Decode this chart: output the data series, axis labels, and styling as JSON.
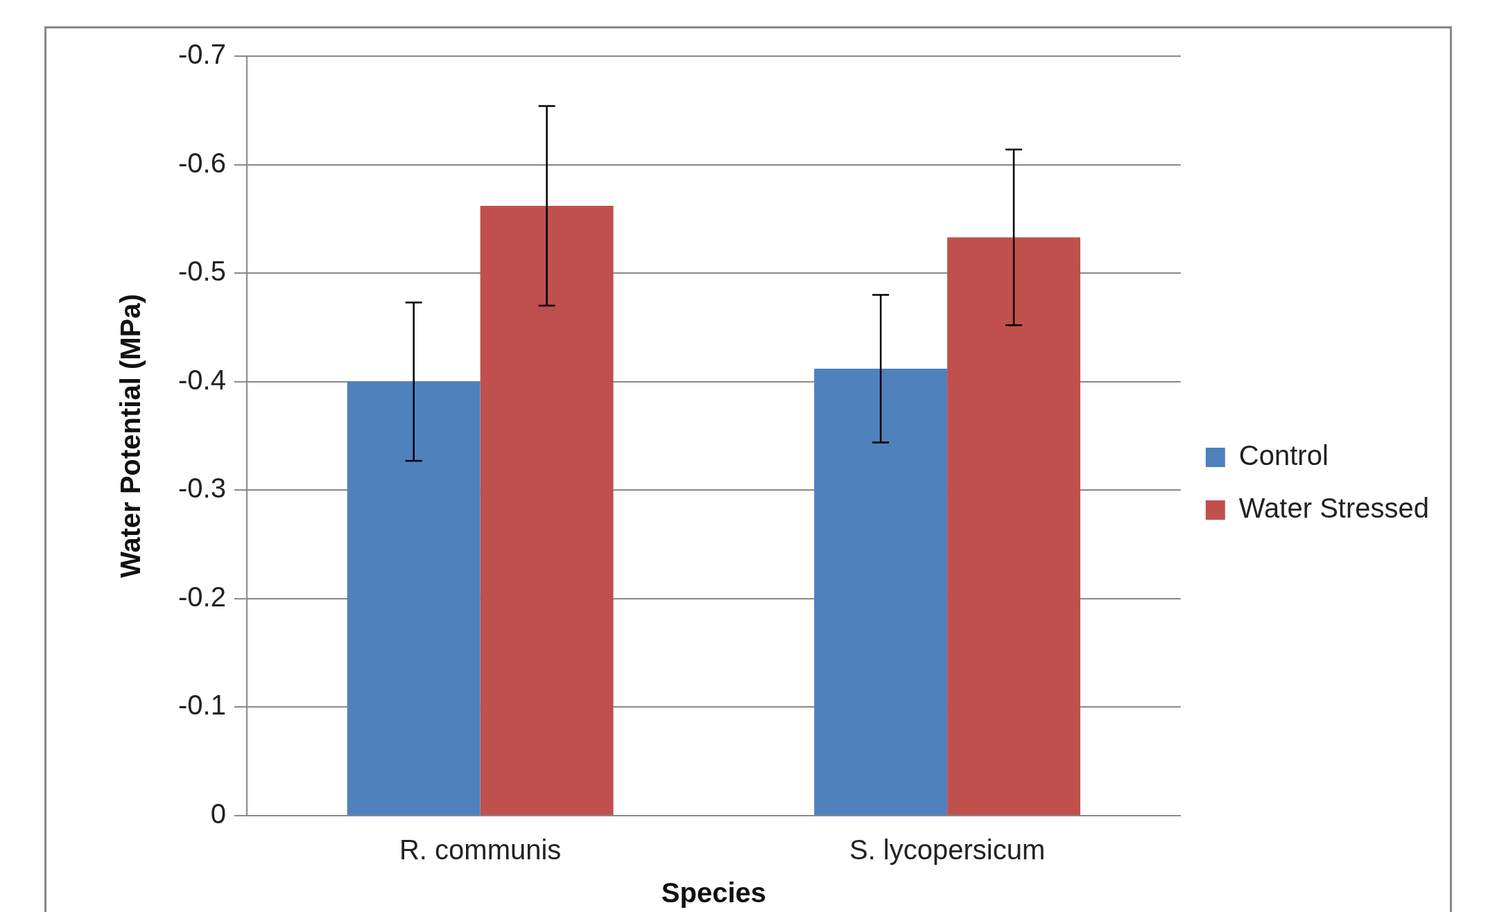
{
  "chart_data": {
    "type": "bar",
    "xlabel": "Species",
    "ylabel": "Water Potential (MPa)",
    "categories": [
      "R. communis",
      "S. lycopersicum"
    ],
    "series": [
      {
        "name": "Control",
        "color": "#4f81bd",
        "values": [
          -0.4,
          -0.412
        ],
        "errors": [
          0.073,
          0.068
        ]
      },
      {
        "name": "Water Stressed",
        "color": "#c0504d",
        "values": [
          -0.562,
          -0.533
        ],
        "errors": [
          0.092,
          0.081
        ]
      }
    ],
    "ylim": [
      0,
      -0.7
    ],
    "yticks": [
      0,
      -0.1,
      -0.2,
      -0.3,
      -0.4,
      -0.5,
      -0.6,
      -0.7
    ],
    "grid": "y",
    "legend": "right"
  }
}
